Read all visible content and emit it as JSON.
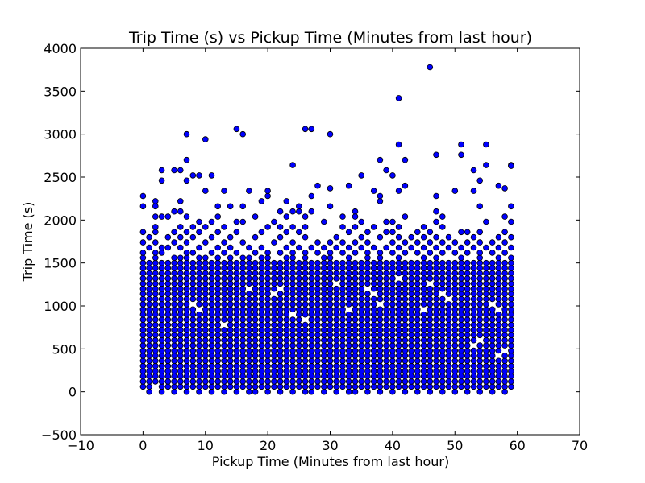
{
  "chart_data": {
    "type": "scatter",
    "title": "Trip Time (s) vs Pickup Time (Minutes from last hour)",
    "xlabel": "Pickup Time (Minutes from last hour)",
    "ylabel": "Trip Time (s)",
    "xlim": [
      -10,
      70
    ],
    "ylim": [
      -500,
      4000
    ],
    "xticks": [
      -10,
      0,
      10,
      20,
      30,
      40,
      50,
      60,
      70
    ],
    "yticks": [
      -500,
      0,
      500,
      1000,
      1500,
      2000,
      2500,
      3000,
      3500,
      4000
    ],
    "xtick_labels": [
      "−10",
      "0",
      "10",
      "20",
      "30",
      "40",
      "50",
      "60",
      "70"
    ],
    "ytick_labels": [
      "−500",
      "0",
      "500",
      "1000",
      "1500",
      "2000",
      "2500",
      "3000",
      "3500",
      "4000"
    ],
    "grid": false,
    "marker_color": "#0000ff",
    "marker_edge_color": "#000000",
    "dense_band": {
      "x_values": [
        0,
        1,
        2,
        3,
        4,
        5,
        6,
        7,
        8,
        9,
        10,
        11,
        12,
        13,
        14,
        15,
        16,
        17,
        18,
        19,
        20,
        21,
        22,
        23,
        24,
        25,
        26,
        27,
        28,
        29,
        30,
        31,
        32,
        33,
        34,
        35,
        36,
        37,
        38,
        39,
        40,
        41,
        42,
        43,
        44,
        45,
        46,
        47,
        48,
        49,
        50,
        51,
        52,
        53,
        54,
        55,
        56,
        57,
        58,
        59
      ],
      "y_step": 60,
      "y_ranges": [
        [
          60,
          1560
        ],
        [
          0,
          1500
        ],
        [
          120,
          1560
        ],
        [
          0,
          1500
        ],
        [
          60,
          1500
        ],
        [
          0,
          1560
        ],
        [
          60,
          1560
        ],
        [
          0,
          1560
        ],
        [
          60,
          1500
        ],
        [
          0,
          1560
        ],
        [
          60,
          1560
        ],
        [
          0,
          1500
        ],
        [
          60,
          1560
        ],
        [
          0,
          1500
        ],
        [
          60,
          1560
        ],
        [
          0,
          1500
        ],
        [
          60,
          1560
        ],
        [
          0,
          1560
        ],
        [
          0,
          1500
        ],
        [
          60,
          1560
        ],
        [
          0,
          1560
        ],
        [
          60,
          1500
        ],
        [
          0,
          1500
        ],
        [
          60,
          1560
        ],
        [
          0,
          1560
        ],
        [
          60,
          1500
        ],
        [
          0,
          1560
        ],
        [
          0,
          1500
        ],
        [
          60,
          1500
        ],
        [
          0,
          1560
        ],
        [
          60,
          1560
        ],
        [
          0,
          1500
        ],
        [
          60,
          1500
        ],
        [
          0,
          1560
        ],
        [
          0,
          1500
        ],
        [
          60,
          1500
        ],
        [
          0,
          1560
        ],
        [
          60,
          1500
        ],
        [
          0,
          1560
        ],
        [
          60,
          1500
        ],
        [
          0,
          1500
        ],
        [
          60,
          1560
        ],
        [
          0,
          1500
        ],
        [
          60,
          1500
        ],
        [
          0,
          1500
        ],
        [
          60,
          1560
        ],
        [
          0,
          1500
        ],
        [
          60,
          1560
        ],
        [
          0,
          1500
        ],
        [
          60,
          1500
        ],
        [
          0,
          1500
        ],
        [
          60,
          1560
        ],
        [
          0,
          1500
        ],
        [
          60,
          1500
        ],
        [
          0,
          1560
        ],
        [
          60,
          1500
        ],
        [
          0,
          1500
        ],
        [
          60,
          1560
        ],
        [
          0,
          1500
        ],
        [
          60,
          1560
        ]
      ]
    },
    "sparse_points": [
      [
        0,
        1620
      ],
      [
        0,
        1740
      ],
      [
        0,
        1860
      ],
      [
        0,
        2160
      ],
      [
        0,
        2280
      ],
      [
        1,
        1680
      ],
      [
        1,
        1800
      ],
      [
        2,
        1620
      ],
      [
        2,
        1740
      ],
      [
        2,
        1860
      ],
      [
        2,
        1920
      ],
      [
        2,
        2040
      ],
      [
        2,
        2160
      ],
      [
        2,
        2220
      ],
      [
        3,
        1620
      ],
      [
        3,
        1680
      ],
      [
        3,
        2040
      ],
      [
        3,
        2460
      ],
      [
        3,
        2580
      ],
      [
        4,
        1680
      ],
      [
        4,
        1800
      ],
      [
        4,
        2040
      ],
      [
        5,
        1740
      ],
      [
        5,
        1860
      ],
      [
        5,
        2100
      ],
      [
        5,
        2580
      ],
      [
        6,
        1680
      ],
      [
        6,
        1800
      ],
      [
        6,
        1920
      ],
      [
        6,
        2100
      ],
      [
        6,
        2220
      ],
      [
        6,
        2580
      ],
      [
        7,
        1620
      ],
      [
        7,
        1740
      ],
      [
        7,
        1860
      ],
      [
        7,
        2040
      ],
      [
        7,
        2460
      ],
      [
        7,
        2700
      ],
      [
        7,
        3000
      ],
      [
        8,
        1620
      ],
      [
        8,
        1800
      ],
      [
        8,
        1920
      ],
      [
        8,
        2520
      ],
      [
        9,
        1680
      ],
      [
        9,
        1860
      ],
      [
        9,
        1980
      ],
      [
        9,
        2520
      ],
      [
        10,
        1740
      ],
      [
        10,
        1920
      ],
      [
        10,
        2340
      ],
      [
        10,
        2940
      ],
      [
        11,
        1620
      ],
      [
        11,
        1800
      ],
      [
        11,
        1980
      ],
      [
        11,
        2520
      ],
      [
        12,
        1680
      ],
      [
        12,
        1860
      ],
      [
        12,
        2040
      ],
      [
        12,
        2160
      ],
      [
        13,
        1620
      ],
      [
        13,
        1740
      ],
      [
        13,
        1920
      ],
      [
        13,
        2340
      ],
      [
        14,
        1680
      ],
      [
        14,
        1800
      ],
      [
        14,
        2160
      ],
      [
        15,
        1620
      ],
      [
        15,
        1860
      ],
      [
        15,
        1980
      ],
      [
        15,
        3060
      ],
      [
        16,
        1740
      ],
      [
        16,
        1980
      ],
      [
        16,
        2160
      ],
      [
        16,
        3000
      ],
      [
        17,
        1680
      ],
      [
        17,
        2340
      ],
      [
        18,
        1620
      ],
      [
        18,
        1800
      ],
      [
        18,
        2040
      ],
      [
        19,
        1680
      ],
      [
        19,
        1860
      ],
      [
        19,
        2220
      ],
      [
        20,
        1620
      ],
      [
        20,
        1920
      ],
      [
        20,
        2280
      ],
      [
        20,
        2340
      ],
      [
        21,
        1740
      ],
      [
        21,
        1980
      ],
      [
        22,
        1620
      ],
      [
        22,
        1800
      ],
      [
        22,
        1920
      ],
      [
        22,
        2100
      ],
      [
        23,
        1680
      ],
      [
        23,
        1860
      ],
      [
        23,
        2040
      ],
      [
        23,
        2220
      ],
      [
        24,
        1620
      ],
      [
        24,
        1740
      ],
      [
        24,
        1920
      ],
      [
        24,
        2100
      ],
      [
        24,
        2640
      ],
      [
        25,
        1680
      ],
      [
        25,
        1860
      ],
      [
        25,
        2100
      ],
      [
        25,
        2160
      ],
      [
        26,
        1620
      ],
      [
        26,
        1800
      ],
      [
        26,
        1920
      ],
      [
        26,
        2040
      ],
      [
        26,
        3060
      ],
      [
        27,
        1680
      ],
      [
        27,
        2100
      ],
      [
        27,
        2280
      ],
      [
        27,
        3060
      ],
      [
        28,
        1620
      ],
      [
        28,
        1740
      ],
      [
        28,
        2400
      ],
      [
        29,
        1680
      ],
      [
        29,
        1980
      ],
      [
        30,
        1620
      ],
      [
        30,
        1740
      ],
      [
        30,
        2160
      ],
      [
        30,
        2370
      ],
      [
        30,
        3000
      ],
      [
        31,
        1680
      ],
      [
        31,
        1800
      ],
      [
        32,
        1620
      ],
      [
        32,
        1740
      ],
      [
        32,
        1920
      ],
      [
        32,
        2040
      ],
      [
        33,
        1680
      ],
      [
        33,
        1860
      ],
      [
        33,
        2400
      ],
      [
        34,
        1620
      ],
      [
        34,
        1740
      ],
      [
        34,
        1920
      ],
      [
        34,
        2100
      ],
      [
        34,
        2040
      ],
      [
        35,
        1680
      ],
      [
        35,
        1800
      ],
      [
        35,
        1980
      ],
      [
        35,
        2520
      ],
      [
        36,
        1620
      ],
      [
        36,
        1740
      ],
      [
        36,
        1860
      ],
      [
        37,
        1680
      ],
      [
        37,
        1920
      ],
      [
        37,
        2340
      ],
      [
        38,
        1620
      ],
      [
        38,
        1800
      ],
      [
        38,
        2220
      ],
      [
        38,
        2280
      ],
      [
        38,
        2700
      ],
      [
        39,
        1680
      ],
      [
        39,
        1860
      ],
      [
        39,
        1980
      ],
      [
        39,
        2580
      ],
      [
        40,
        1620
      ],
      [
        40,
        1740
      ],
      [
        40,
        1860
      ],
      [
        40,
        1980
      ],
      [
        40,
        2520
      ],
      [
        41,
        1680
      ],
      [
        41,
        1800
      ],
      [
        41,
        1920
      ],
      [
        41,
        2340
      ],
      [
        41,
        2880
      ],
      [
        41,
        3420
      ],
      [
        42,
        1620
      ],
      [
        42,
        1740
      ],
      [
        42,
        2040
      ],
      [
        42,
        2400
      ],
      [
        42,
        2700
      ],
      [
        43,
        1680
      ],
      [
        43,
        1800
      ],
      [
        44,
        1620
      ],
      [
        44,
        1740
      ],
      [
        44,
        1860
      ],
      [
        45,
        1680
      ],
      [
        45,
        1800
      ],
      [
        45,
        1920
      ],
      [
        46,
        1620
      ],
      [
        46,
        1740
      ],
      [
        46,
        1860
      ],
      [
        46,
        3780
      ],
      [
        47,
        1680
      ],
      [
        47,
        1800
      ],
      [
        47,
        1980
      ],
      [
        47,
        2100
      ],
      [
        47,
        2280
      ],
      [
        47,
        2760
      ],
      [
        48,
        1620
      ],
      [
        48,
        1740
      ],
      [
        48,
        1920
      ],
      [
        48,
        2040
      ],
      [
        49,
        1680
      ],
      [
        49,
        1800
      ],
      [
        50,
        1620
      ],
      [
        50,
        1740
      ],
      [
        50,
        2340
      ],
      [
        51,
        1680
      ],
      [
        51,
        1860
      ],
      [
        51,
        2760
      ],
      [
        51,
        2880
      ],
      [
        52,
        1620
      ],
      [
        52,
        1740
      ],
      [
        52,
        1860
      ],
      [
        53,
        1680
      ],
      [
        53,
        1800
      ],
      [
        53,
        2340
      ],
      [
        53,
        2580
      ],
      [
        54,
        1620
      ],
      [
        54,
        1740
      ],
      [
        54,
        1860
      ],
      [
        54,
        2160
      ],
      [
        54,
        2460
      ],
      [
        55,
        1680
      ],
      [
        55,
        1980
      ],
      [
        55,
        2640
      ],
      [
        55,
        2880
      ],
      [
        56,
        1620
      ],
      [
        56,
        1740
      ],
      [
        57,
        1680
      ],
      [
        57,
        1800
      ],
      [
        57,
        2400
      ],
      [
        58,
        1620
      ],
      [
        58,
        1740
      ],
      [
        58,
        1860
      ],
      [
        58,
        2040
      ],
      [
        58,
        2370
      ],
      [
        59,
        1680
      ],
      [
        59,
        1800
      ],
      [
        59,
        1980
      ],
      [
        59,
        2160
      ],
      [
        59,
        2640
      ],
      [
        59,
        2630
      ]
    ],
    "dense_gaps": [
      [
        8,
        1020
      ],
      [
        9,
        960
      ],
      [
        13,
        780
      ],
      [
        17,
        1200
      ],
      [
        21,
        1140
      ],
      [
        22,
        1200
      ],
      [
        24,
        900
      ],
      [
        26,
        840
      ],
      [
        31,
        1260
      ],
      [
        33,
        960
      ],
      [
        36,
        1200
      ],
      [
        37,
        1140
      ],
      [
        38,
        1020
      ],
      [
        41,
        1320
      ],
      [
        45,
        960
      ],
      [
        46,
        1260
      ],
      [
        48,
        1140
      ],
      [
        49,
        1080
      ],
      [
        53,
        540
      ],
      [
        54,
        600
      ],
      [
        56,
        1020
      ],
      [
        57,
        960
      ],
      [
        57,
        420
      ],
      [
        58,
        480
      ]
    ]
  }
}
